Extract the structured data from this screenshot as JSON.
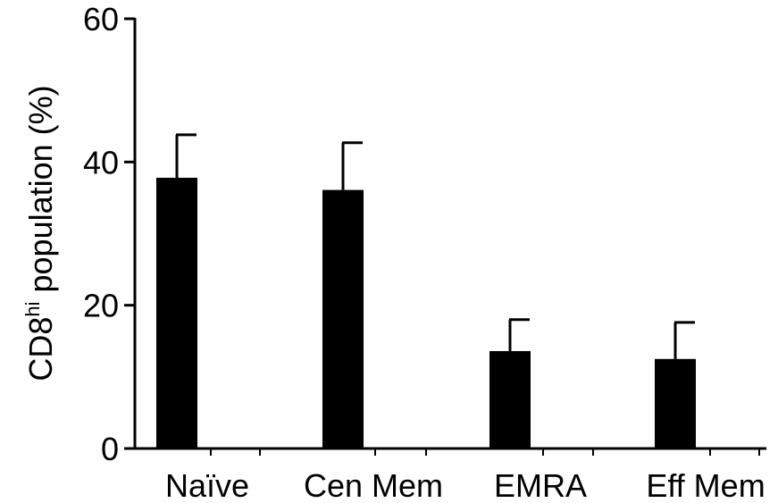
{
  "chart_data": {
    "type": "bar",
    "categories": [
      "Naïve",
      "Cen Mem",
      "EMRA",
      "Eff Mem"
    ],
    "values": [
      37.8,
      36.1,
      13.6,
      12.5
    ],
    "error_upper": [
      43.8,
      42.7,
      18.0,
      17.6
    ],
    "ylabel_main": "CD8",
    "ylabel_sup": "hi",
    "ylabel_rest": " population (%)",
    "ylim": [
      0,
      60
    ],
    "yticks": [
      0,
      20,
      40,
      60
    ],
    "ytick_labels": [
      "0",
      "20",
      "40",
      "60"
    ],
    "grid": false,
    "bar_color": "#000000"
  }
}
